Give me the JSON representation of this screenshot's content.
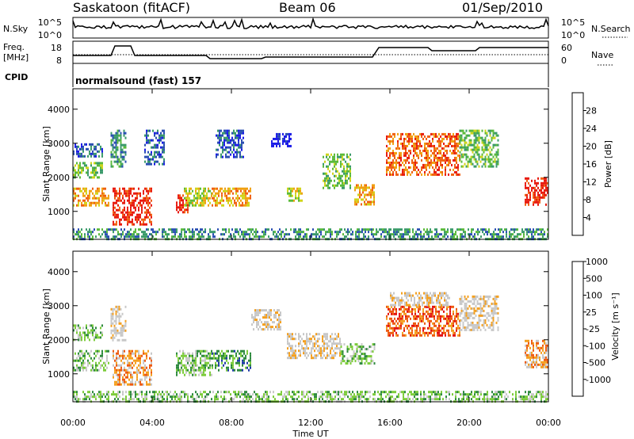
{
  "header": {
    "site": "Saskatoon (fitACF)",
    "beam": "Beam 06",
    "date": "01/Sep/2010"
  },
  "panels": {
    "nsky": {
      "label": "N.Sky",
      "ticks": [
        "10^5",
        "10^0"
      ],
      "right_label": "N.Search"
    },
    "freq": {
      "label_line1": "Freq.",
      "label_line2": "[MHz]",
      "ticks": [
        "18",
        "8"
      ],
      "right_ticks": [
        "60",
        "0"
      ],
      "right_label": "Nave"
    },
    "cpid": {
      "label": "CPID",
      "text": "normalsound (fast) 157"
    }
  },
  "colors": {
    "power": [
      "#1b1be8",
      "#2a4fb2",
      "#3a9a6a",
      "#5aba3a",
      "#cfd51a",
      "#f0a010",
      "#f06010",
      "#e81a0e"
    ],
    "velocity": [
      "#e31212",
      "#ee5a10",
      "#f4a020",
      "#c8c8c8",
      "#c8c8c8",
      "#7ccc3a",
      "#2e8a3e",
      "#1f3aa8"
    ],
    "ground_scatter": "#c0c0c0"
  },
  "chart_data": [
    {
      "type": "heatmap",
      "name": "power",
      "ylabel": "Slant Range [km]",
      "yticks": [
        "1000",
        "2000",
        "3000",
        "4000"
      ],
      "ylim": [
        180,
        4600
      ],
      "xlim": [
        0,
        24
      ],
      "colorbar": {
        "label": "Power [dB]",
        "ticks": [
          "4",
          "8",
          "12",
          "16",
          "20",
          "24",
          "28"
        ]
      },
      "regions": [
        {
          "t0": 0.0,
          "t1": 1.8,
          "r0": 1150,
          "r1": 1700,
          "bin": 5
        },
        {
          "t0": 0.0,
          "t1": 1.5,
          "r0": 2000,
          "r1": 2450,
          "bin": 3
        },
        {
          "t0": 0.0,
          "t1": 1.5,
          "r0": 2600,
          "r1": 3000,
          "bin": 1
        },
        {
          "t0": 2.0,
          "t1": 4.0,
          "r0": 650,
          "r1": 1700,
          "bin": 7
        },
        {
          "t0": 1.9,
          "t1": 2.7,
          "r0": 2300,
          "r1": 3400,
          "bin": 2
        },
        {
          "t0": 3.6,
          "t1": 4.6,
          "r0": 2400,
          "r1": 3400,
          "bin": 1
        },
        {
          "t0": 5.2,
          "t1": 5.8,
          "r0": 1000,
          "r1": 1500,
          "bin": 7
        },
        {
          "t0": 5.6,
          "t1": 7.0,
          "r0": 1200,
          "r1": 1700,
          "bin": 4
        },
        {
          "t0": 7.0,
          "t1": 9.0,
          "r0": 1200,
          "r1": 1700,
          "bin": 5
        },
        {
          "t0": 7.2,
          "t1": 8.6,
          "r0": 2600,
          "r1": 3400,
          "bin": 1
        },
        {
          "t0": 10.8,
          "t1": 11.6,
          "r0": 1300,
          "r1": 1700,
          "bin": 4
        },
        {
          "t0": 10.0,
          "t1": 11.0,
          "r0": 2900,
          "r1": 3300,
          "bin": 0
        },
        {
          "t0": 12.6,
          "t1": 14.0,
          "r0": 1700,
          "r1": 2700,
          "bin": 3
        },
        {
          "t0": 14.2,
          "t1": 15.2,
          "r0": 1200,
          "r1": 1800,
          "bin": 5
        },
        {
          "t0": 15.8,
          "t1": 19.5,
          "r0": 2100,
          "r1": 3300,
          "bin": 6
        },
        {
          "t0": 19.5,
          "t1": 21.5,
          "r0": 2300,
          "r1": 3400,
          "bin": 3
        },
        {
          "t0": 22.8,
          "t1": 24.0,
          "r0": 1200,
          "r1": 2000,
          "bin": 7
        },
        {
          "t0": 0.0,
          "t1": 24.0,
          "r0": 200,
          "r1": 500,
          "bin": 2
        }
      ]
    },
    {
      "type": "heatmap",
      "name": "velocity",
      "ylabel": "Slant Range [km]",
      "xlabel": "Time UT",
      "xticks": [
        "00:00",
        "04:00",
        "08:00",
        "12:00",
        "16:00",
        "20:00",
        "00:00"
      ],
      "yticks": [
        "1000",
        "2000",
        "3000",
        "4000"
      ],
      "ylim": [
        180,
        4600
      ],
      "xlim": [
        0,
        24
      ],
      "colorbar": {
        "label": "Velocity [m s⁻¹]",
        "ticks": [
          "1000",
          "500",
          "100",
          "25",
          "-25",
          "-100",
          "-500",
          "-1000"
        ]
      },
      "regions": [
        {
          "t0": 0.0,
          "t1": 1.8,
          "r0": 1100,
          "r1": 1700,
          "bin": 5
        },
        {
          "t0": 0.0,
          "t1": 1.5,
          "r0": 2000,
          "r1": 2450,
          "bin": 5
        },
        {
          "t0": 2.0,
          "t1": 4.0,
          "r0": 700,
          "r1": 1700,
          "bin": 2
        },
        {
          "t0": 1.9,
          "t1": 2.7,
          "r0": 2000,
          "r1": 3000,
          "bin": 3
        },
        {
          "t0": 5.2,
          "t1": 7.0,
          "r0": 1000,
          "r1": 1700,
          "bin": 5
        },
        {
          "t0": 7.0,
          "t1": 9.0,
          "r0": 1100,
          "r1": 1700,
          "bin": 6
        },
        {
          "t0": 9.0,
          "t1": 10.5,
          "r0": 2300,
          "r1": 2900,
          "bin": 3
        },
        {
          "t0": 10.8,
          "t1": 13.5,
          "r0": 1500,
          "r1": 2200,
          "bin": 3
        },
        {
          "t0": 13.5,
          "t1": 15.2,
          "r0": 1300,
          "r1": 1900,
          "bin": 5
        },
        {
          "t0": 15.8,
          "t1": 19.5,
          "r0": 2100,
          "r1": 3000,
          "bin": 1
        },
        {
          "t0": 16.0,
          "t1": 19.0,
          "r0": 3000,
          "r1": 3400,
          "bin": 3
        },
        {
          "t0": 19.5,
          "t1": 21.5,
          "r0": 2300,
          "r1": 3300,
          "bin": 3
        },
        {
          "t0": 22.8,
          "t1": 24.0,
          "r0": 1200,
          "r1": 2000,
          "bin": 2
        },
        {
          "t0": 0.0,
          "t1": 24.0,
          "r0": 200,
          "r1": 500,
          "bin": 5
        }
      ]
    }
  ]
}
